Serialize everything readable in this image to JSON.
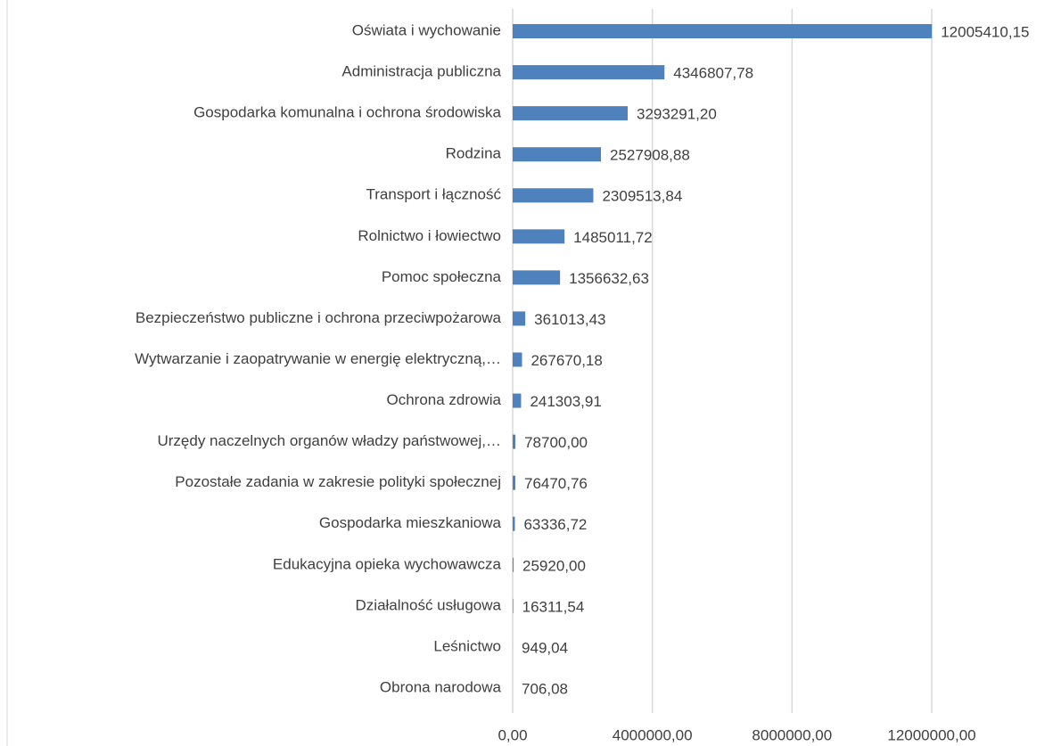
{
  "chart_data": {
    "type": "bar",
    "orientation": "horizontal",
    "categories": [
      "Oświata i wychowanie",
      "Administracja publiczna",
      "Gospodarka komunalna i ochrona środowiska",
      "Rodzina",
      "Transport i łączność",
      "Rolnictwo i łowiectwo",
      "Pomoc  społeczna",
      "Bezpieczeństwo publiczne i ochrona przeciwpożarowa",
      "Wytwarzanie i zaopatrywanie w energię elektryczną,…",
      "Ochrona zdrowia",
      "Urzędy naczelnych organów  władzy państwowej,…",
      "Pozostałe zadania w zakresie polityki społecznej",
      "Gospodarka mieszkaniowa",
      "Edukacyjna opieka wychowawcza",
      "Działalność usługowa",
      "Leśnictwo",
      "Obrona narodowa"
    ],
    "values": [
      12005410.15,
      4346807.78,
      3293291.2,
      2527908.88,
      2309513.84,
      1485011.72,
      1356632.63,
      361013.43,
      267670.18,
      241303.91,
      78700.0,
      76470.76,
      63336.72,
      25920.0,
      16311.54,
      949.04,
      706.08
    ],
    "value_labels": [
      "12005410,15",
      "4346807,78",
      "3293291,20",
      "2527908,88",
      "2309513,84",
      "1485011,72",
      "1356632,63",
      "361013,43",
      "267670,18",
      "241303,91",
      "78700,00",
      "76470,76",
      "63336,72",
      "25920,00",
      "16311,54",
      "949,04",
      "706,08"
    ],
    "color": "#4f81bd",
    "xlim": [
      0,
      12000000
    ],
    "xticks": [
      {
        "value": 0,
        "label": "0,00"
      },
      {
        "value": 4000000,
        "label": "4000000,00"
      },
      {
        "value": 8000000,
        "label": "8000000,00"
      },
      {
        "value": 12000000,
        "label": "12000000,00"
      }
    ],
    "grid": true
  }
}
